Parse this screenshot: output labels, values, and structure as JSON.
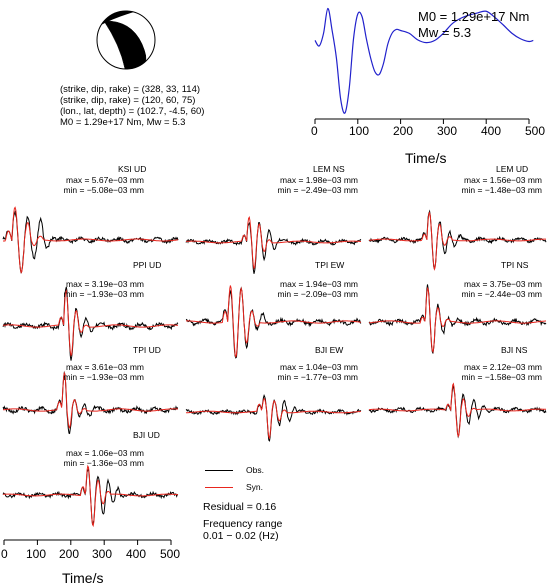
{
  "source_info": {
    "line1": "(strike, dip, rake) = (328, 33, 114)",
    "line2": "(strike, dip, rake) = (120, 60, 75)",
    "line3": "(lon., lat, depth) = (102.7, -4.5, 60)",
    "line4": "M0 = 1.29e+17 Nm, Mw = 5.3"
  },
  "stf": {
    "m0_text": "M0 = 1.29e+17 Nm",
    "mw_text": "Mw = 5.3",
    "xlabel": "Time/s",
    "xticks": [
      "0",
      "100",
      "200",
      "300",
      "400",
      "500"
    ]
  },
  "bottom_axis": {
    "xlabel": "Time/s",
    "xticks": [
      "0",
      "100",
      "200",
      "300",
      "400",
      "500"
    ]
  },
  "legend": {
    "obs_label": "Obs.",
    "syn_label": "Syn.",
    "residual_text": "Residual = 0.16",
    "freq_title": "Frequency range",
    "freq_range": "0.01 − 0.02 (Hz)",
    "obs_color": "#000000",
    "syn_color": "#e8261e"
  },
  "colors": {
    "stf": "#2222cc",
    "obs": "#000000",
    "syn": "#e8261e",
    "beach_fill": "#000000"
  },
  "stations": [
    {
      "name": "KSI UD",
      "max": "max = 5.67e−03 mm",
      "min": "min = −5.08e−03 mm"
    },
    {
      "name": "LEM NS",
      "max": "max = 1.98e−03 mm",
      "min": "min = −2.49e−03 mm"
    },
    {
      "name": "LEM UD",
      "max": "max = 1.56e−03 mm",
      "min": "min = −1.48e−03 mm"
    },
    {
      "name": "PPI UD",
      "max": "max = 3.19e−03 mm",
      "min": "min = −1.93e−03 mm"
    },
    {
      "name": "TPI EW",
      "max": "max = 1.94e−03 mm",
      "min": "min = −2.09e−03 mm"
    },
    {
      "name": "TPI NS",
      "max": "max = 3.75e−03 mm",
      "min": "min = −2.44e−03 mm"
    },
    {
      "name": "TPI UD",
      "max": "max = 3.61e−03 mm",
      "min": "min = −1.93e−03 mm"
    },
    {
      "name": "BJI EW",
      "max": "max = 1.04e−03 mm",
      "min": "min = −1.77e−03 mm"
    },
    {
      "name": "BJI NS",
      "max": "max = 2.12e−03 mm",
      "min": "min = −1.58e−03 mm"
    },
    {
      "name": "BJI UD",
      "max": "max = 1.06e−03 mm",
      "min": "min = −1.36e−03 mm"
    }
  ],
  "chart_data": [
    {
      "type": "line",
      "name": "source_time_function",
      "xlabel": "Time/s",
      "xlim": [
        0,
        520
      ],
      "x": [
        0,
        10,
        20,
        30,
        40,
        50,
        60,
        70,
        80,
        90,
        100,
        110,
        120,
        130,
        140,
        150,
        160,
        170,
        180,
        190,
        200,
        220,
        240,
        260,
        280,
        300,
        320,
        340,
        360,
        380,
        400,
        420,
        440,
        460,
        480,
        500,
        510
      ],
      "y": [
        0.32,
        0.22,
        0.45,
        0.9,
        0.5,
        0.0,
        -0.75,
        -1.0,
        -0.55,
        0.35,
        0.8,
        0.75,
        0.35,
        0.0,
        -0.25,
        -0.3,
        -0.1,
        0.25,
        0.45,
        0.52,
        0.5,
        0.45,
        0.33,
        0.28,
        0.32,
        0.45,
        0.62,
        0.72,
        0.78,
        0.82,
        0.85,
        0.74,
        0.6,
        0.45,
        0.35,
        0.3,
        0.32
      ]
    },
    {
      "type": "line",
      "name": "waveform_fits",
      "xlabel": "Time/s",
      "xlim": [
        0,
        520
      ],
      "series": [
        {
          "name": "Obs."
        },
        {
          "name": "Syn."
        }
      ],
      "waveforms": [
        {
          "station": "KSI UD",
          "tp": 45,
          "obs_amp": [
            0.25,
            0.9,
            -1.0,
            0.7,
            -0.5,
            0.6,
            -0.25,
            0.1
          ],
          "syn_amp": [
            0.3,
            1.0,
            -1.0,
            0.5,
            -0.2,
            0.1,
            0.0,
            0.0
          ],
          "period": 38
        },
        {
          "station": "LEM NS",
          "tp": 195,
          "obs_amp": [
            0.2,
            0.6,
            -1.0,
            0.7,
            -0.6,
            0.4,
            -0.2,
            0.1
          ],
          "syn_amp": [
            0.2,
            0.8,
            -0.9,
            0.6,
            -0.3,
            0.1,
            0.0,
            0.0
          ],
          "period": 30
        },
        {
          "station": "LEM UD",
          "tp": 185,
          "obs_amp": [
            0.2,
            1.0,
            -0.95,
            0.6,
            -0.5,
            0.3,
            -0.2,
            0.1
          ],
          "syn_amp": [
            0.2,
            0.9,
            -1.0,
            0.5,
            -0.2,
            0.1,
            0.0,
            0.0
          ],
          "period": 30
        },
        {
          "station": "PPI UD",
          "tp": 195,
          "obs_amp": [
            0.2,
            1.0,
            -0.85,
            0.5,
            -0.3,
            0.2,
            -0.1,
            0.05
          ],
          "syn_amp": [
            0.2,
            0.9,
            -0.8,
            0.4,
            -0.15,
            0.05,
            0.0,
            0.0
          ],
          "period": 30
        },
        {
          "station": "TPI EW",
          "tp": 140,
          "obs_amp": [
            0.3,
            0.9,
            -1.0,
            0.9,
            -0.7,
            0.4,
            -0.2,
            0.2
          ],
          "syn_amp": [
            0.3,
            1.0,
            -1.0,
            0.9,
            -0.6,
            0.3,
            -0.1,
            0.0
          ],
          "period": 32
        },
        {
          "station": "TPI NS",
          "tp": 180,
          "obs_amp": [
            0.15,
            1.0,
            -0.8,
            0.4,
            -0.3,
            0.15,
            -0.1,
            0.05
          ],
          "syn_amp": [
            0.15,
            0.9,
            -0.8,
            0.35,
            -0.15,
            0.05,
            0.0,
            0.0
          ],
          "period": 30
        },
        {
          "station": "TPI UD",
          "tp": 190,
          "obs_amp": [
            0.2,
            1.0,
            -0.55,
            0.3,
            -0.2,
            0.15,
            -0.1,
            0.05
          ],
          "syn_amp": [
            0.2,
            0.95,
            -0.5,
            0.25,
            -0.1,
            0.05,
            0.0,
            0.0
          ],
          "period": 30
        },
        {
          "station": "BJI EW",
          "tp": 240,
          "obs_amp": [
            0.25,
            0.5,
            -1.0,
            0.45,
            -0.5,
            0.35,
            -0.3,
            0.2
          ],
          "syn_amp": [
            0.25,
            0.45,
            -0.95,
            0.4,
            -0.3,
            0.1,
            0.0,
            0.0
          ],
          "period": 30
        },
        {
          "station": "BJI NS",
          "tp": 255,
          "obs_amp": [
            0.2,
            0.8,
            -0.9,
            0.5,
            -0.4,
            0.3,
            -0.3,
            0.15
          ],
          "syn_amp": [
            0.2,
            0.9,
            -0.85,
            0.4,
            -0.2,
            0.05,
            0.0,
            0.0
          ],
          "period": 30
        },
        {
          "station": "BJI UD",
          "tp": 260,
          "obs_amp": [
            0.25,
            0.9,
            -1.0,
            0.6,
            -0.6,
            0.5,
            -0.3,
            0.2
          ],
          "syn_amp": [
            0.3,
            1.0,
            -1.0,
            0.5,
            -0.3,
            0.1,
            0.0,
            0.0
          ],
          "period": 30
        }
      ]
    }
  ]
}
